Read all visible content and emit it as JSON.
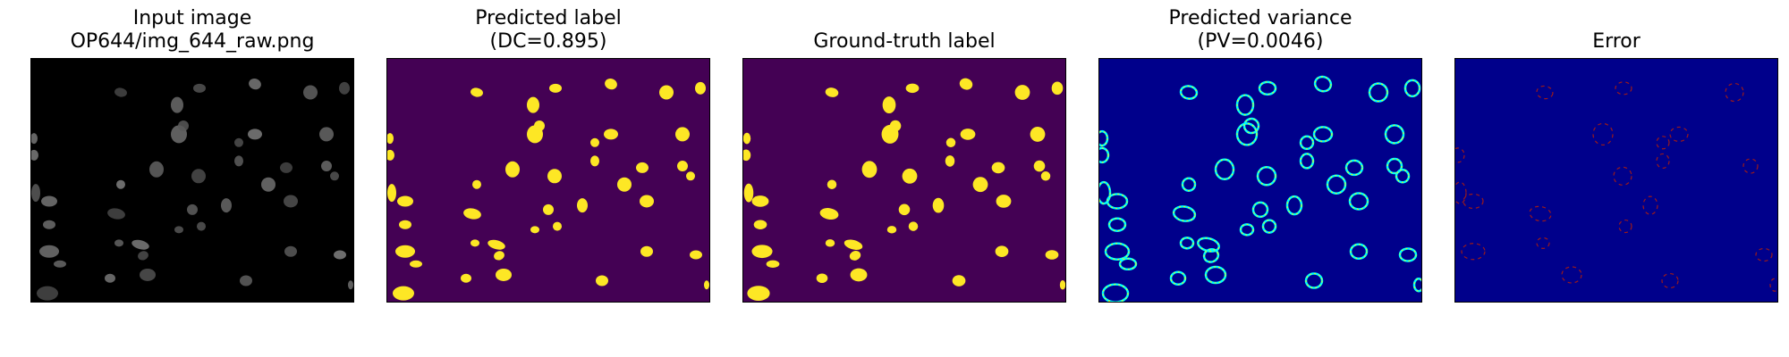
{
  "figure": {
    "panels": [
      {
        "id": "input",
        "title_line1": "Input image",
        "title_line2": "OP644/img_644_raw.png",
        "background": "#000000"
      },
      {
        "id": "pred",
        "title_line1": "Predicted label",
        "title_line2": "(DC=0.895)",
        "background": "#440154",
        "fill": "#FDE725"
      },
      {
        "id": "gt",
        "title_line1": "Ground-truth label",
        "title_line2": "",
        "background": "#440154",
        "fill": "#FDE725"
      },
      {
        "id": "var",
        "title_line1": "Predicted variance",
        "title_line2": "(PV=0.0046)",
        "background": "#00008B"
      },
      {
        "id": "err",
        "title_line1": "Error",
        "title_line2": "",
        "background": "#00008B",
        "stroke": "#9B1A1A"
      }
    ]
  }
}
